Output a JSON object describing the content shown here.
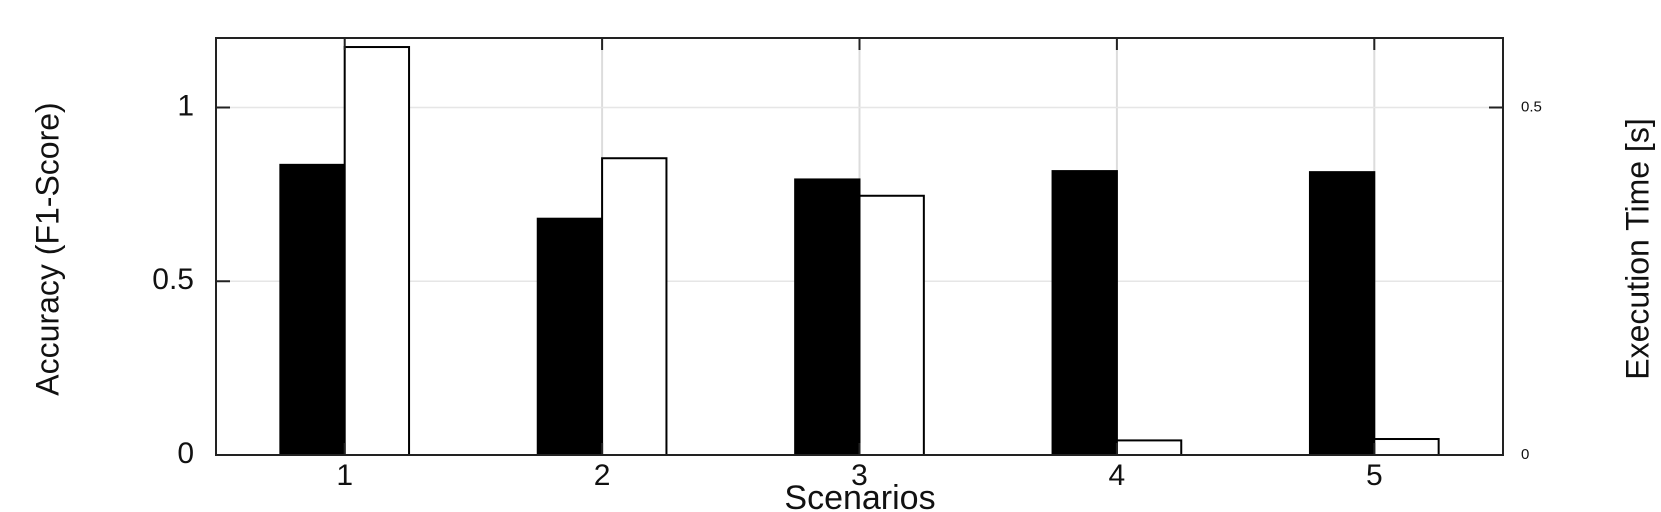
{
  "chart_data": {
    "type": "bar",
    "xlabel": "Scenarios",
    "ylabel": "Accuracy (F1-Score)",
    "y2label": "Execution Time [s]",
    "categories": [
      "1",
      "2",
      "3",
      "4",
      "5"
    ],
    "series": [
      {
        "color": "#000000",
        "values": [
          0.835,
          0.68,
          0.793,
          0.817,
          0.814
        ]
      },
      {
        "color": "#ffffff",
        "axis": "y2",
        "values": [
          0.587,
          0.427,
          0.373,
          0.021,
          0.023
        ]
      }
    ],
    "ylim": [
      0,
      1.2
    ],
    "yticks": [
      0,
      0.5,
      1
    ],
    "y2lim": [
      0,
      0.6
    ],
    "y2ticks": [
      0,
      0.5
    ],
    "grid": true
  }
}
